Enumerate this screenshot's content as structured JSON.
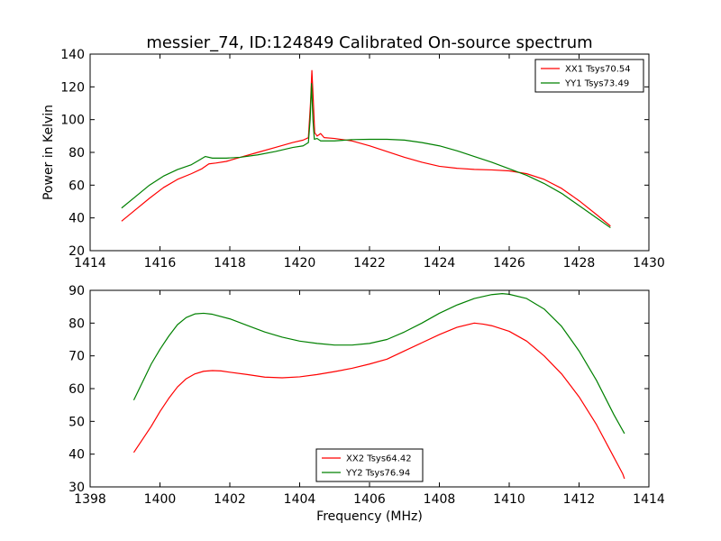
{
  "title": "messier_74, ID:124849 Calibrated On-source spectrum",
  "xlabel": "Frequency (MHz)",
  "ylabel": "Power in Kelvin",
  "colors": {
    "XX": "#ff0000",
    "YY": "#008000"
  },
  "chart_data": [
    {
      "type": "line",
      "xlim": [
        1414,
        1430
      ],
      "ylim": [
        20,
        140
      ],
      "xticks": [
        1414,
        1416,
        1418,
        1420,
        1422,
        1424,
        1426,
        1428,
        1430
      ],
      "yticks": [
        20,
        40,
        60,
        80,
        100,
        120,
        140
      ],
      "legend": "top-right",
      "series": [
        {
          "name": "XX1 Tsys70.54",
          "color": "#ff0000",
          "points": [
            [
              1414.9,
              38
            ],
            [
              1415.3,
              45
            ],
            [
              1415.7,
              52
            ],
            [
              1416.1,
              58.5
            ],
            [
              1416.5,
              63.5
            ],
            [
              1416.9,
              67
            ],
            [
              1417.2,
              70
            ],
            [
              1417.4,
              73
            ],
            [
              1417.6,
              73.5
            ],
            [
              1417.9,
              74.5
            ],
            [
              1418.3,
              77
            ],
            [
              1418.8,
              80
            ],
            [
              1419.3,
              83
            ],
            [
              1419.8,
              86
            ],
            [
              1420.1,
              87.5
            ],
            [
              1420.25,
              89
            ],
            [
              1420.31,
              110
            ],
            [
              1420.35,
              130
            ],
            [
              1420.39,
              112
            ],
            [
              1420.43,
              92
            ],
            [
              1420.5,
              90
            ],
            [
              1420.6,
              91.5
            ],
            [
              1420.7,
              89
            ],
            [
              1421.0,
              88.5
            ],
            [
              1421.5,
              87
            ],
            [
              1422.0,
              84
            ],
            [
              1422.5,
              80.5
            ],
            [
              1423.0,
              77
            ],
            [
              1423.5,
              74
            ],
            [
              1424.0,
              71.5
            ],
            [
              1424.5,
              70.3
            ],
            [
              1425.0,
              69.6
            ],
            [
              1425.5,
              69.3
            ],
            [
              1426.0,
              68.7
            ],
            [
              1426.5,
              67
            ],
            [
              1427.0,
              63.5
            ],
            [
              1427.5,
              58
            ],
            [
              1428.0,
              50.5
            ],
            [
              1428.5,
              42
            ],
            [
              1428.9,
              35
            ]
          ]
        },
        {
          "name": "YY1 Tsys73.49",
          "color": "#008000",
          "points": [
            [
              1414.9,
              46
            ],
            [
              1415.3,
              53
            ],
            [
              1415.7,
              60
            ],
            [
              1416.1,
              65.5
            ],
            [
              1416.5,
              69.5
            ],
            [
              1416.9,
              72.5
            ],
            [
              1417.1,
              75
            ],
            [
              1417.3,
              77.5
            ],
            [
              1417.5,
              76.5
            ],
            [
              1417.9,
              76.5
            ],
            [
              1418.3,
              77
            ],
            [
              1418.8,
              78.5
            ],
            [
              1419.3,
              80.5
            ],
            [
              1419.8,
              83
            ],
            [
              1420.1,
              84
            ],
            [
              1420.25,
              86
            ],
            [
              1420.3,
              100
            ],
            [
              1420.34,
              122
            ],
            [
              1420.38,
              100
            ],
            [
              1420.42,
              88
            ],
            [
              1420.5,
              88.5
            ],
            [
              1420.6,
              87
            ],
            [
              1421.0,
              87
            ],
            [
              1421.5,
              87.8
            ],
            [
              1422.0,
              88
            ],
            [
              1422.5,
              88
            ],
            [
              1423.0,
              87.5
            ],
            [
              1423.5,
              86
            ],
            [
              1424.0,
              84
            ],
            [
              1424.5,
              81
            ],
            [
              1425.0,
              77.5
            ],
            [
              1425.5,
              74
            ],
            [
              1426.0,
              70
            ],
            [
              1426.5,
              66
            ],
            [
              1427.0,
              61
            ],
            [
              1427.5,
              55
            ],
            [
              1428.0,
              47.5
            ],
            [
              1428.5,
              40
            ],
            [
              1428.9,
              34
            ]
          ]
        }
      ]
    },
    {
      "type": "line",
      "xlim": [
        1398,
        1414
      ],
      "ylim": [
        30,
        90
      ],
      "xticks": [
        1398,
        1400,
        1402,
        1404,
        1406,
        1408,
        1410,
        1412,
        1414
      ],
      "yticks": [
        30,
        40,
        50,
        60,
        70,
        80,
        90
      ],
      "legend": "bottom-center",
      "series": [
        {
          "name": "XX2 Tsys64.42",
          "color": "#ff0000",
          "points": [
            [
              1399.25,
              40.5
            ],
            [
              1399.5,
              44.5
            ],
            [
              1399.75,
              48.5
            ],
            [
              1400.0,
              53
            ],
            [
              1400.25,
              57
            ],
            [
              1400.5,
              60.5
            ],
            [
              1400.75,
              63
            ],
            [
              1401.0,
              64.5
            ],
            [
              1401.25,
              65.3
            ],
            [
              1401.5,
              65.5
            ],
            [
              1401.75,
              65.4
            ],
            [
              1402.0,
              65
            ],
            [
              1402.5,
              64.3
            ],
            [
              1403.0,
              63.5
            ],
            [
              1403.5,
              63.3
            ],
            [
              1404.0,
              63.6
            ],
            [
              1404.5,
              64.3
            ],
            [
              1405.0,
              65.2
            ],
            [
              1405.5,
              66.2
            ],
            [
              1406.0,
              67.5
            ],
            [
              1406.5,
              69
            ],
            [
              1407.0,
              71.5
            ],
            [
              1407.5,
              74
            ],
            [
              1408.0,
              76.5
            ],
            [
              1408.5,
              78.7
            ],
            [
              1409.0,
              80
            ],
            [
              1409.25,
              79.7
            ],
            [
              1409.5,
              79.2
            ],
            [
              1410.0,
              77.5
            ],
            [
              1410.5,
              74.5
            ],
            [
              1411.0,
              70
            ],
            [
              1411.5,
              64.5
            ],
            [
              1412.0,
              57.5
            ],
            [
              1412.5,
              49
            ],
            [
              1413.0,
              39
            ],
            [
              1413.25,
              34
            ],
            [
              1413.3,
              32.5
            ]
          ]
        },
        {
          "name": "YY2 Tsys76.94",
          "color": "#008000",
          "points": [
            [
              1399.25,
              56.5
            ],
            [
              1399.5,
              62
            ],
            [
              1399.75,
              67.5
            ],
            [
              1400.0,
              72
            ],
            [
              1400.25,
              76
            ],
            [
              1400.5,
              79.5
            ],
            [
              1400.75,
              81.7
            ],
            [
              1401.0,
              82.8
            ],
            [
              1401.25,
              83
            ],
            [
              1401.5,
              82.7
            ],
            [
              1402.0,
              81.3
            ],
            [
              1402.5,
              79.3
            ],
            [
              1403.0,
              77.3
            ],
            [
              1403.5,
              75.7
            ],
            [
              1404.0,
              74.5
            ],
            [
              1404.5,
              73.8
            ],
            [
              1405.0,
              73.3
            ],
            [
              1405.5,
              73.3
            ],
            [
              1406.0,
              73.8
            ],
            [
              1406.5,
              75
            ],
            [
              1407.0,
              77.3
            ],
            [
              1407.5,
              80
            ],
            [
              1408.0,
              83
            ],
            [
              1408.5,
              85.5
            ],
            [
              1409.0,
              87.5
            ],
            [
              1409.5,
              88.7
            ],
            [
              1409.8,
              89
            ],
            [
              1410.0,
              88.8
            ],
            [
              1410.5,
              87.5
            ],
            [
              1411.0,
              84.3
            ],
            [
              1411.5,
              79
            ],
            [
              1412.0,
              71.5
            ],
            [
              1412.5,
              62.5
            ],
            [
              1413.0,
              52
            ],
            [
              1413.3,
              46.3
            ]
          ]
        }
      ]
    }
  ]
}
